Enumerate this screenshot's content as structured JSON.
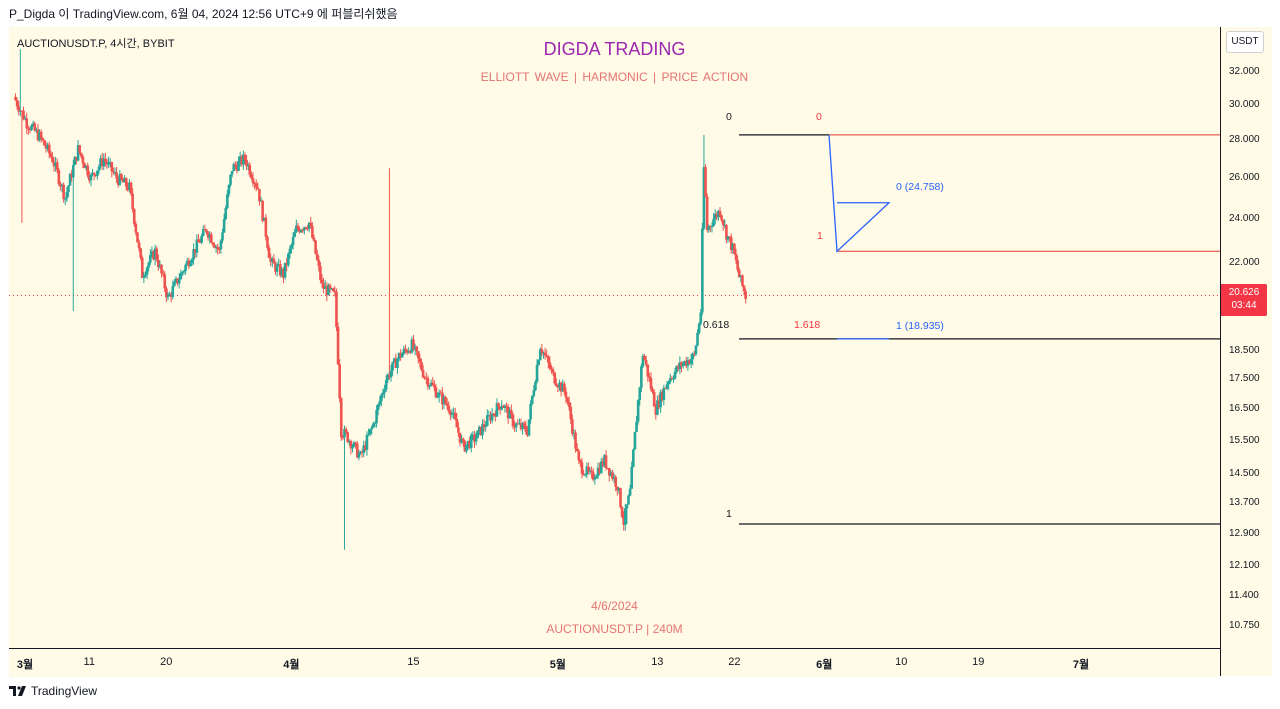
{
  "header": {
    "text": "P_Digda 이 TradingView.com, 6월 04, 2024 12:56 UTC+9 에 퍼블리쉬했음"
  },
  "chart": {
    "symbol_line": "AUCTIONUSDT.P, 4시간, BYBIT",
    "title": "DIGDA TRADING",
    "subtitle": "ELLIOTT WAVE   |   HARMONIC   |   PRICE ACTION",
    "date_text": "4/6/2024",
    "symbol_tf": "AUCTIONUSDT.P  |  240M"
  },
  "price_axis": {
    "unit": "USDT",
    "ticks": [
      "32.000",
      "30.000",
      "28.000",
      "26.000",
      "24.000",
      "22.000",
      "18.500",
      "17.500",
      "16.500",
      "15.500",
      "14.500",
      "13.700",
      "12.900",
      "12.100",
      "11.400",
      "10.750"
    ],
    "current_price": "20.626",
    "countdown": "03:44"
  },
  "time_axis": {
    "ticks": [
      {
        "label": "3월",
        "bold": true
      },
      {
        "label": "11",
        "bold": false
      },
      {
        "label": "20",
        "bold": false
      },
      {
        "label": "4월",
        "bold": true
      },
      {
        "label": "15",
        "bold": false
      },
      {
        "label": "5월",
        "bold": true
      },
      {
        "label": "13",
        "bold": false
      },
      {
        "label": "22",
        "bold": false
      },
      {
        "label": "6월",
        "bold": true
      },
      {
        "label": "10",
        "bold": false
      },
      {
        "label": "19",
        "bold": false
      },
      {
        "label": "7월",
        "bold": true
      }
    ]
  },
  "annotations": {
    "fib_left_0": "0",
    "fib_left_0618": "0.618",
    "fib_left_1": "1",
    "fib_red_0": "0",
    "fib_red_1": "1",
    "fib_red_1618": "1.618",
    "fib_blue_0": "0 (24.758)",
    "fib_blue_1": "1 (18.935)"
  },
  "footer": {
    "brand": "TradingView"
  },
  "colors": {
    "up": "#26a69a",
    "down": "#ef5350",
    "title": "#9c27b0",
    "accent": "#f23645",
    "fib_blue": "#2962ff"
  },
  "chart_data": {
    "type": "candlestick",
    "title": "DIGDA TRADING",
    "symbol": "AUCTIONUSDT.P",
    "timeframe": "4H",
    "exchange": "BYBIT",
    "y_scale": "log",
    "ylim": [
      10.3,
      35.0
    ],
    "x_range_days": [
      0,
      124
    ],
    "current_price": 20.626,
    "levels": [
      {
        "name": "fib 0",
        "price": 28.3
      },
      {
        "name": "fib 0.618",
        "price": 18.935
      },
      {
        "name": "fib 1",
        "price": 13.15
      },
      {
        "name": "resistance",
        "price": 22.5
      },
      {
        "name": "projection 0",
        "price": 24.758
      },
      {
        "name": "projection 1",
        "price": 18.935
      }
    ],
    "path": [
      [
        0,
        30.5
      ],
      [
        2,
        29.0
      ],
      [
        4,
        28.2
      ],
      [
        6,
        27.0
      ],
      [
        8,
        25.0
      ],
      [
        10,
        27.5
      ],
      [
        12,
        26.0
      ],
      [
        14,
        27.0
      ],
      [
        16,
        26.0
      ],
      [
        18,
        25.5
      ],
      [
        20,
        21.5
      ],
      [
        22,
        22.5
      ],
      [
        24,
        20.5
      ],
      [
        26,
        21.5
      ],
      [
        28,
        22.5
      ],
      [
        30,
        23.5
      ],
      [
        32,
        22.5
      ],
      [
        34,
        26.5
      ],
      [
        36,
        27.0
      ],
      [
        38,
        25.5
      ],
      [
        40,
        22.0
      ],
      [
        42,
        21.5
      ],
      [
        44,
        23.5
      ],
      [
        46,
        23.8
      ],
      [
        48,
        21.0
      ],
      [
        50,
        20.6
      ],
      [
        51,
        15.8
      ],
      [
        52,
        15.6
      ],
      [
        54,
        15.0
      ],
      [
        56,
        16.0
      ],
      [
        58,
        17.5
      ],
      [
        60,
        18.3
      ],
      [
        62,
        18.7
      ],
      [
        64,
        17.6
      ],
      [
        66,
        17.0
      ],
      [
        68,
        16.5
      ],
      [
        70,
        15.3
      ],
      [
        72,
        15.6
      ],
      [
        74,
        16.2
      ],
      [
        76,
        16.7
      ],
      [
        78,
        16.0
      ],
      [
        80,
        15.8
      ],
      [
        82,
        18.7
      ],
      [
        84,
        17.6
      ],
      [
        86,
        17.0
      ],
      [
        88,
        14.8
      ],
      [
        90,
        14.4
      ],
      [
        92,
        14.9
      ],
      [
        94,
        14.2
      ],
      [
        95,
        13.2
      ],
      [
        96,
        14.0
      ],
      [
        98,
        18.4
      ],
      [
        100,
        16.5
      ],
      [
        102,
        17.5
      ],
      [
        104,
        18.0
      ],
      [
        106,
        18.3
      ],
      [
        107,
        20.0
      ],
      [
        107.5,
        26.5
      ],
      [
        108,
        23.5
      ],
      [
        109,
        24.0
      ],
      [
        110,
        24.4
      ],
      [
        111,
        23.3
      ],
      [
        112,
        22.6
      ],
      [
        113,
        21.4
      ],
      [
        114,
        20.6
      ]
    ]
  }
}
